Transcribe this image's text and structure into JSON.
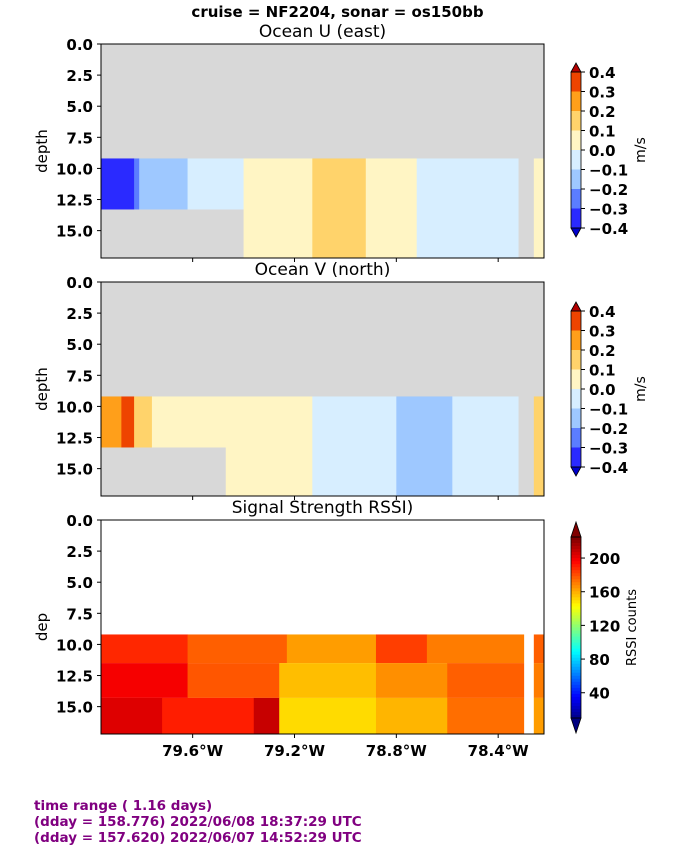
{
  "suptitle": "cruise = NF2204,  sonar = os150bb",
  "footer": {
    "line1": "time range ( 1.16 days)",
    "line2": "(dday = 158.776) 2022/06/08 18:37:29 UTC",
    "line3": "(dday = 157.620) 2022/06/07 14:52:29 UTC"
  },
  "chart_data": [
    {
      "type": "heatmap",
      "title": "Ocean U (east)",
      "ylabel": "depth",
      "xlabel": "",
      "ylim": [
        17.2,
        0
      ],
      "xlim": [
        -79.96,
        -78.22
      ],
      "yticks": [
        "0.0",
        "2.5",
        "5.0",
        "7.5",
        "10.0",
        "12.5",
        "15.0"
      ],
      "xticks": [],
      "colorbar": {
        "label": "m/s",
        "ticks": [
          "0.4",
          "0.3",
          "0.2",
          "0.1",
          "0.0",
          "−0.1",
          "−0.2",
          "−0.3",
          "−0.4"
        ],
        "colors": [
          "#0000cc",
          "#2a2aff",
          "#5b7dff",
          "#9ec8ff",
          "#d7eeff",
          "#fff5c4",
          "#ffd36b",
          "#ff9f1a",
          "#ee4400",
          "#b30000"
        ]
      },
      "nodata_color": "#d8d8d8",
      "bins": [
        {
          "x": [
            -79.96,
            -79.83
          ],
          "y": [
            9.2,
            13.3
          ],
          "value": -0.35
        },
        {
          "x": [
            -79.83,
            -79.81
          ],
          "y": [
            9.2,
            13.3
          ],
          "value": -0.25
        },
        {
          "x": [
            -79.81,
            -79.62
          ],
          "y": [
            9.2,
            13.3
          ],
          "value": -0.15
        },
        {
          "x": [
            -79.62,
            -79.4
          ],
          "y": [
            9.2,
            13.3
          ],
          "value": -0.05
        },
        {
          "x": [
            -79.4,
            -79.13
          ],
          "y": [
            9.2,
            17.2
          ],
          "value": 0.05
        },
        {
          "x": [
            -79.13,
            -78.92
          ],
          "y": [
            9.2,
            17.2
          ],
          "value": 0.15
        },
        {
          "x": [
            -78.92,
            -78.72
          ],
          "y": [
            9.2,
            17.2
          ],
          "value": 0.05
        },
        {
          "x": [
            -78.72,
            -78.32
          ],
          "y": [
            9.2,
            17.2
          ],
          "value": -0.05
        },
        {
          "x": [
            -78.32,
            -78.26
          ],
          "y": [
            9.2,
            17.2
          ],
          "value": null
        },
        {
          "x": [
            -78.26,
            -78.22
          ],
          "y": [
            9.2,
            17.2
          ],
          "value": 0.05
        }
      ]
    },
    {
      "type": "heatmap",
      "title": "Ocean V (north)",
      "ylabel": "depth",
      "xlabel": "",
      "ylim": [
        17.2,
        0
      ],
      "xlim": [
        -79.96,
        -78.22
      ],
      "yticks": [
        "0.0",
        "2.5",
        "5.0",
        "7.5",
        "10.0",
        "12.5",
        "15.0"
      ],
      "xticks": [],
      "colorbar": {
        "label": "m/s",
        "ticks": [
          "0.4",
          "0.3",
          "0.2",
          "0.1",
          "0.0",
          "−0.1",
          "−0.2",
          "−0.3",
          "−0.4"
        ],
        "colors": [
          "#0000cc",
          "#2a2aff",
          "#5b7dff",
          "#9ec8ff",
          "#d7eeff",
          "#fff5c4",
          "#ffd36b",
          "#ff9f1a",
          "#ee4400",
          "#b30000"
        ]
      },
      "nodata_color": "#d8d8d8",
      "bins": [
        {
          "x": [
            -79.96,
            -79.88
          ],
          "y": [
            9.2,
            13.3
          ],
          "value": 0.25
        },
        {
          "x": [
            -79.88,
            -79.83
          ],
          "y": [
            9.2,
            13.3
          ],
          "value": 0.35
        },
        {
          "x": [
            -79.83,
            -79.76
          ],
          "y": [
            9.2,
            13.3
          ],
          "value": 0.15
        },
        {
          "x": [
            -79.76,
            -79.47
          ],
          "y": [
            9.2,
            13.3
          ],
          "value": 0.05
        },
        {
          "x": [
            -79.47,
            -79.13
          ],
          "y": [
            9.2,
            17.2
          ],
          "value": 0.05
        },
        {
          "x": [
            -79.13,
            -78.8
          ],
          "y": [
            9.2,
            17.2
          ],
          "value": -0.05
        },
        {
          "x": [
            -78.8,
            -78.58
          ],
          "y": [
            9.2,
            17.2
          ],
          "value": -0.15
        },
        {
          "x": [
            -78.58,
            -78.32
          ],
          "y": [
            9.2,
            17.2
          ],
          "value": -0.05
        },
        {
          "x": [
            -78.32,
            -78.26
          ],
          "y": [
            9.2,
            17.2
          ],
          "value": null
        },
        {
          "x": [
            -78.26,
            -78.22
          ],
          "y": [
            9.2,
            17.2
          ],
          "value": 0.15
        }
      ]
    },
    {
      "type": "heatmap",
      "title": "Signal Strength RSSI)",
      "ylabel": "dep",
      "xlabel": "",
      "ylim": [
        17.2,
        0
      ],
      "xlim": [
        -79.96,
        -78.22
      ],
      "yticks": [
        "0.0",
        "2.5",
        "5.0",
        "7.5",
        "10.0",
        "12.5",
        "15.0"
      ],
      "xticks": [
        "79.6°W",
        "79.2°W",
        "78.8°W",
        "78.4°W"
      ],
      "xtick_values": [
        -79.6,
        -79.2,
        -78.8,
        -78.4
      ],
      "colorbar": {
        "label": "RSSI counts",
        "range": [
          10,
          225
        ],
        "ticks": [
          "200",
          "160",
          "120",
          "80",
          "40"
        ],
        "tick_values": [
          200,
          160,
          120,
          80,
          40
        ]
      },
      "rows": [
        {
          "y": [
            9.2,
            11.5
          ],
          "segments": [
            {
              "x": [
                -79.96,
                -79.62
              ],
              "value": 190
            },
            {
              "x": [
                -79.62,
                -79.23
              ],
              "value": 178
            },
            {
              "x": [
                -79.23,
                -78.88
              ],
              "value": 165
            },
            {
              "x": [
                -78.88,
                -78.68
              ],
              "value": 185
            },
            {
              "x": [
                -78.68,
                -78.3
              ],
              "value": 172
            },
            {
              "x": [
                -78.26,
                -78.22
              ],
              "value": 178
            }
          ]
        },
        {
          "y": [
            11.5,
            14.3
          ],
          "segments": [
            {
              "x": [
                -79.96,
                -79.62
              ],
              "value": 200
            },
            {
              "x": [
                -79.62,
                -79.26
              ],
              "value": 180
            },
            {
              "x": [
                -79.26,
                -78.88
              ],
              "value": 158
            },
            {
              "x": [
                -78.88,
                -78.6
              ],
              "value": 168
            },
            {
              "x": [
                -78.6,
                -78.3
              ],
              "value": 178
            },
            {
              "x": [
                -78.26,
                -78.22
              ],
              "value": 172
            }
          ]
        },
        {
          "y": [
            14.3,
            17.2
          ],
          "segments": [
            {
              "x": [
                -79.96,
                -79.72
              ],
              "value": 205
            },
            {
              "x": [
                -79.72,
                -79.36
              ],
              "value": 192
            },
            {
              "x": [
                -79.36,
                -79.26
              ],
              "value": 210
            },
            {
              "x": [
                -79.26,
                -78.88
              ],
              "value": 152
            },
            {
              "x": [
                -78.88,
                -78.6
              ],
              "value": 160
            },
            {
              "x": [
                -78.6,
                -78.3
              ],
              "value": 175
            },
            {
              "x": [
                -78.26,
                -78.22
              ],
              "value": 165
            }
          ]
        }
      ]
    }
  ]
}
